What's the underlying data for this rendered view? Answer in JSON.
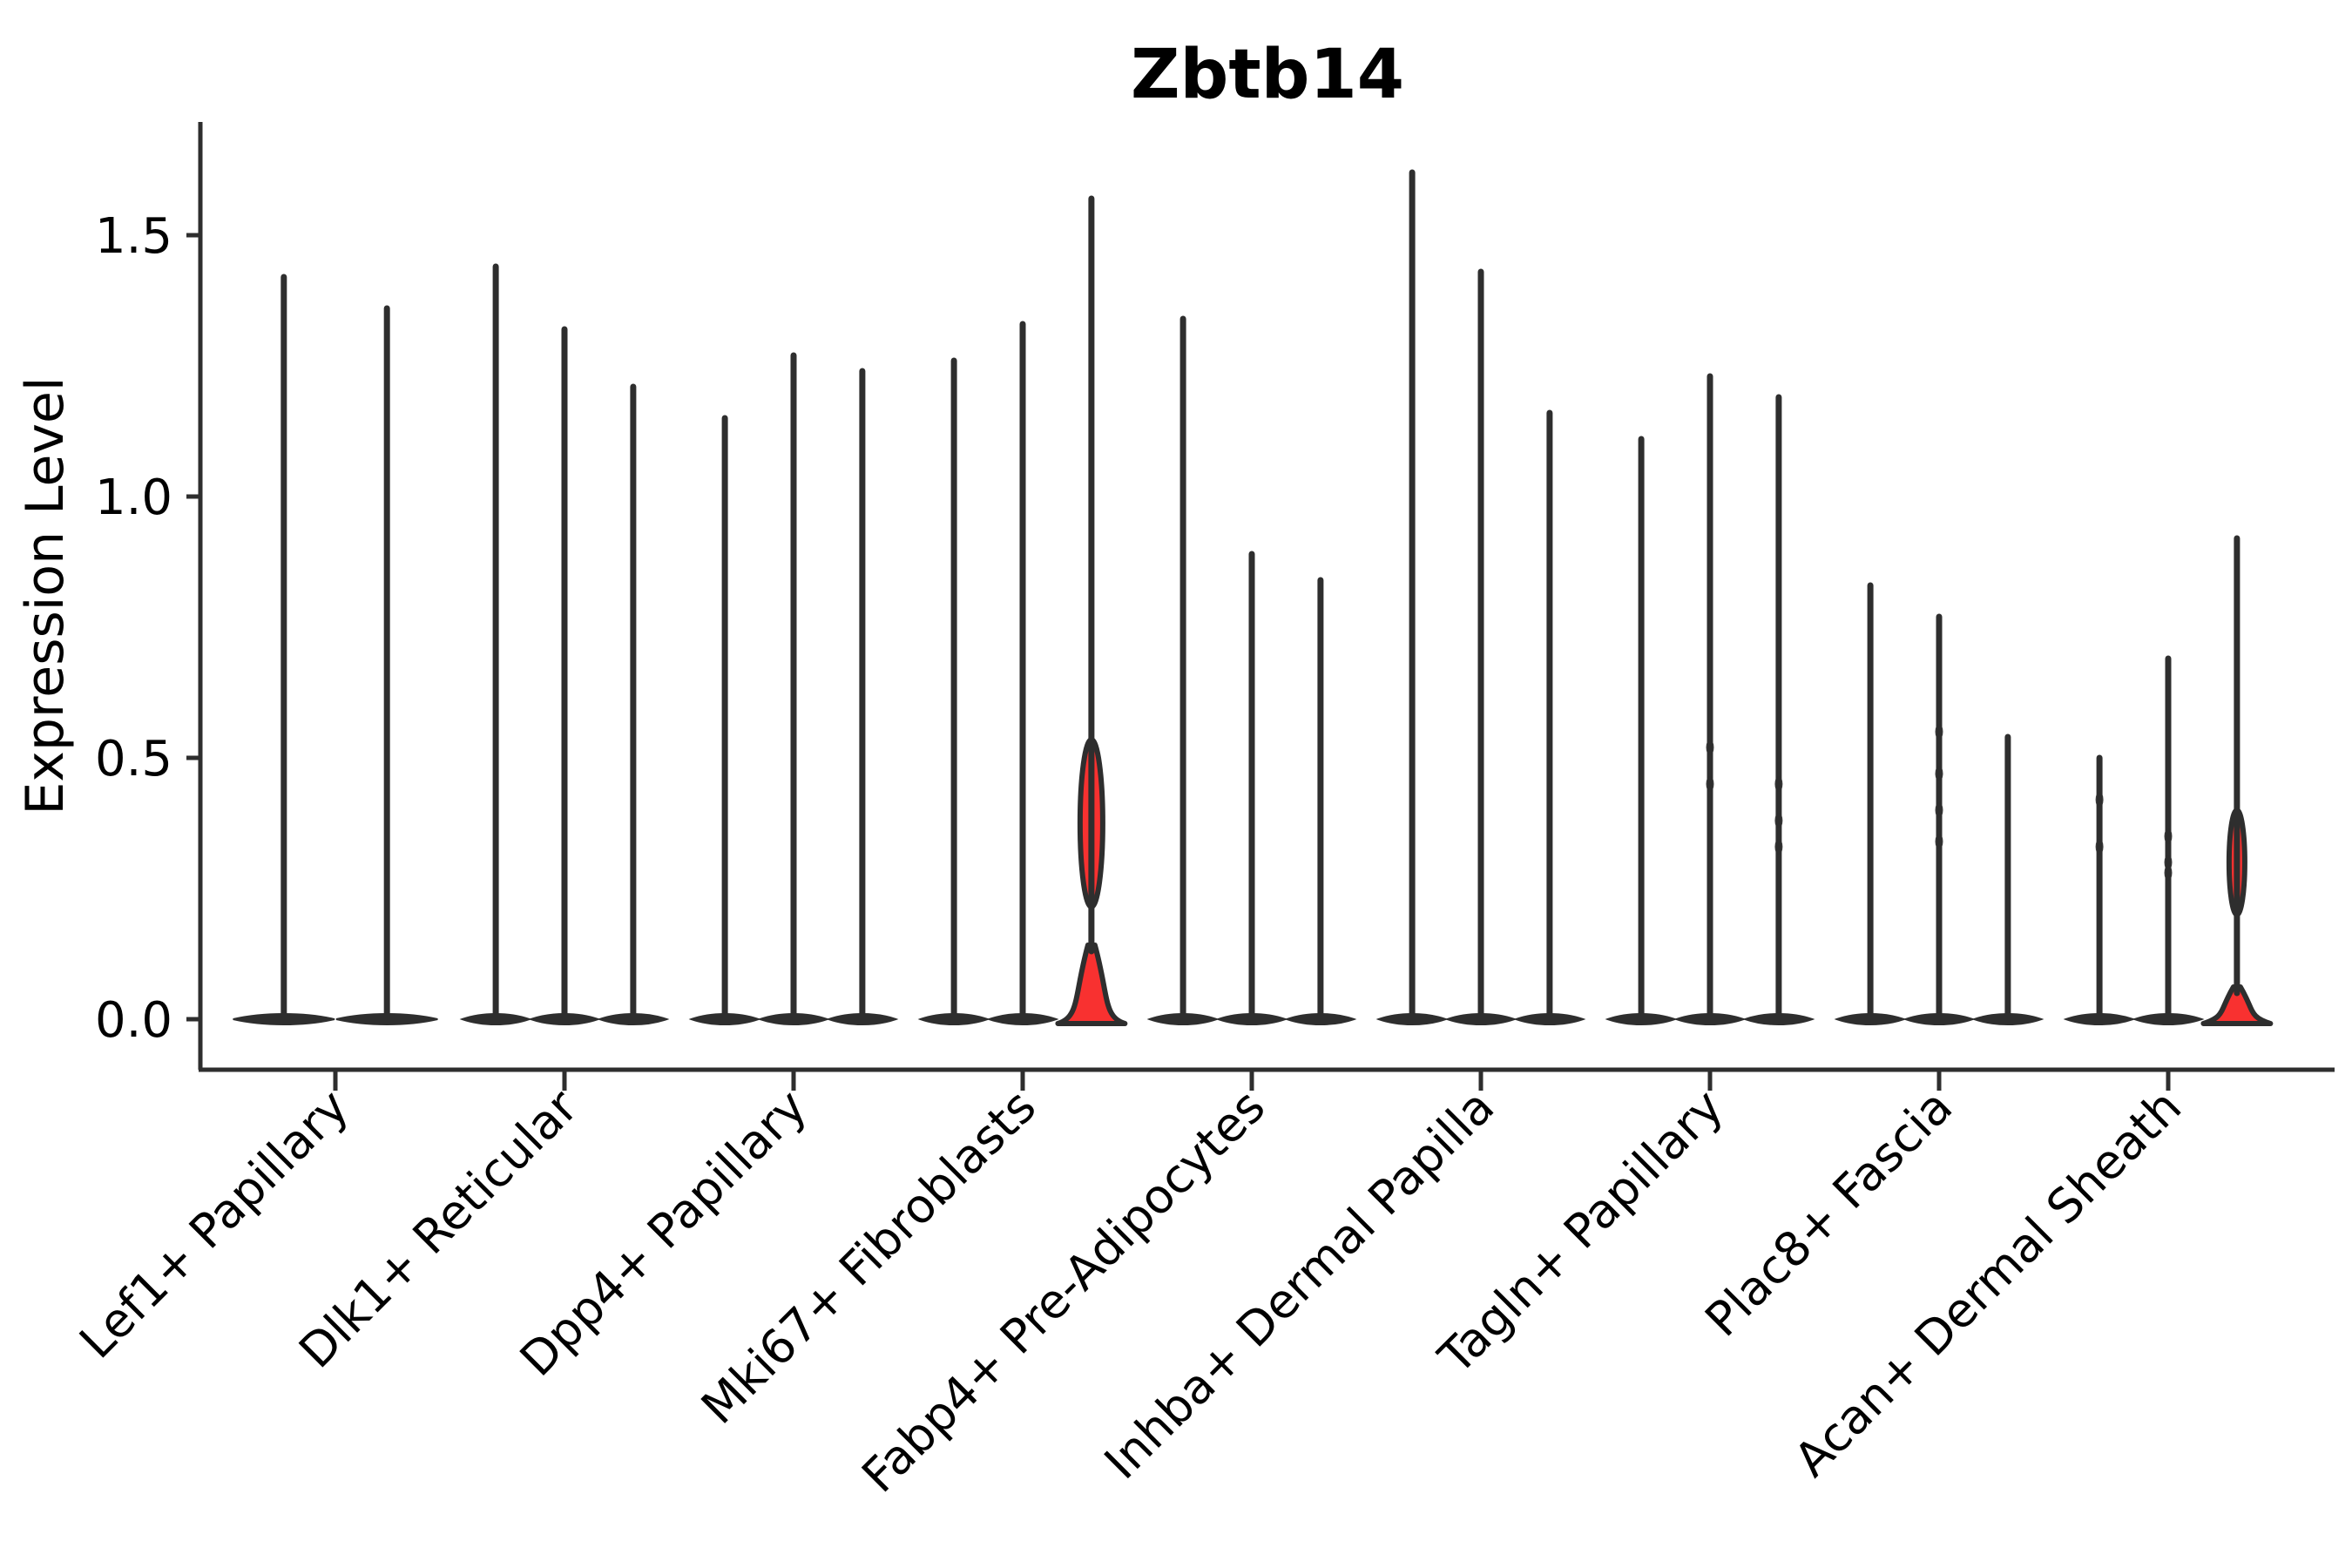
{
  "chart_data": {
    "type": "violin",
    "title": "Zbtb14",
    "ylabel": "Expression Level",
    "xlabel": "",
    "yticks": [
      {
        "label": "0.0",
        "value": 0.0
      },
      {
        "label": "0.5",
        "value": 0.5
      },
      {
        "label": "1.0",
        "value": 1.0
      },
      {
        "label": "1.5",
        "value": 1.5
      }
    ],
    "ylim": [
      -0.1,
      1.72
    ],
    "grid": false,
    "legend": "none",
    "colors": {
      "violin_stroke": "#2e2e2e",
      "violin_fill": "#2e2e2e",
      "highlight_fill": "#f83130",
      "axis": "#2e2e2e",
      "text": "#000000",
      "background": "#ffffff"
    },
    "groups": [
      {
        "label": "Lef1+ Papillary",
        "violins": [
          {
            "max": 1.42
          },
          {
            "max": 1.36
          }
        ]
      },
      {
        "label": "Dlk1+ Reticular",
        "violins": [
          {
            "max": 1.44
          },
          {
            "max": 1.32
          },
          {
            "max": 1.21
          }
        ]
      },
      {
        "label": "Dpp4+ Papillary",
        "violins": [
          {
            "max": 1.15
          },
          {
            "max": 1.27
          },
          {
            "max": 1.24
          }
        ]
      },
      {
        "label": "Mki67+ Fibroblasts",
        "violins": [
          {
            "max": 1.26
          },
          {
            "max": 1.33
          },
          {
            "max": 1.57,
            "highlight": true,
            "flare": 0.15,
            "bulge": {
              "center": 0.375,
              "halfspan": 0.16,
              "halfwidth": 13
            }
          }
        ]
      },
      {
        "label": "Fabp4+ Pre-Adipocytes",
        "violins": [
          {
            "max": 1.34
          },
          {
            "max": 0.89
          },
          {
            "max": 0.84
          }
        ]
      },
      {
        "label": "Inhba+ Dermal Papilla",
        "violins": [
          {
            "max": 1.62
          },
          {
            "max": 1.43
          },
          {
            "max": 1.16
          }
        ]
      },
      {
        "label": "Tagln+ Papillary",
        "violins": [
          {
            "max": 1.11
          },
          {
            "max": 1.23,
            "marks": [
              0.52,
              0.45
            ]
          },
          {
            "max": 1.19,
            "marks": [
              0.45,
              0.38,
              0.33
            ]
          }
        ]
      },
      {
        "label": "Plac8+ Fascia",
        "violins": [
          {
            "max": 0.83
          },
          {
            "max": 0.77,
            "marks": [
              0.55,
              0.47,
              0.4,
              0.34
            ]
          },
          {
            "max": 0.54
          }
        ]
      },
      {
        "label": "Acan+ Dermal Sheath",
        "violins": [
          {
            "max": 0.5,
            "marks": [
              0.42,
              0.33
            ]
          },
          {
            "max": 0.69,
            "marks": [
              0.35,
              0.3,
              0.28
            ]
          },
          {
            "max": 0.92,
            "highlight": true,
            "flare": 0.07,
            "bulge": {
              "center": 0.3,
              "halfspan": 0.1,
              "halfwidth": 9
            }
          }
        ]
      }
    ]
  }
}
